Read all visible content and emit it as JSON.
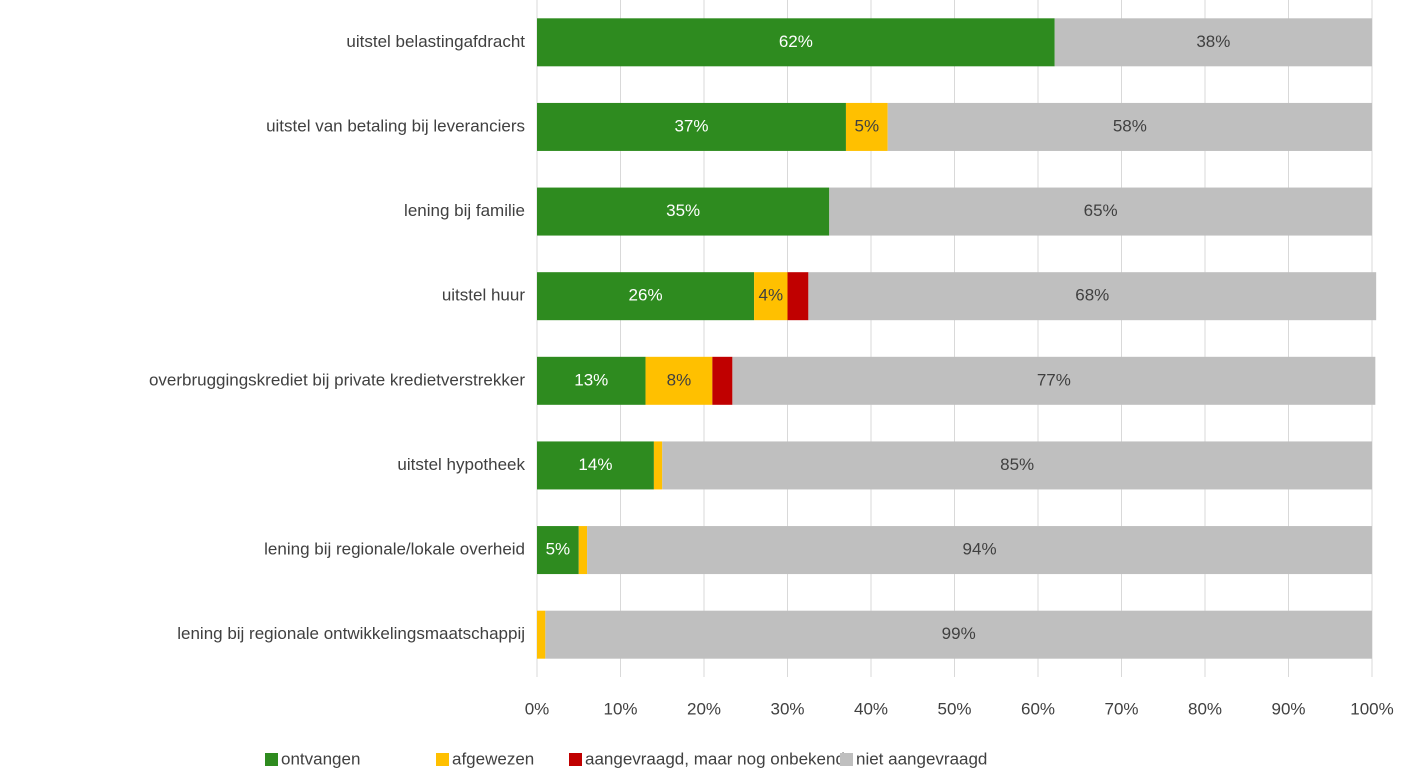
{
  "chart_data": {
    "type": "stacked_bar_horizontal",
    "categories": [
      "uitstel belastingafdracht",
      "uitstel van betaling bij leveranciers",
      "lening bij familie",
      "uitstel huur",
      "overbruggingskrediet bij private kredietverstrekker",
      "uitstel hypotheek",
      "lening bij regionale/lokale overheid",
      "lening bij regionale ontwikkelingsmaatschappij"
    ],
    "series": [
      {
        "name": "ontvangen",
        "color": "#2e8b1f",
        "values": [
          62,
          37,
          35,
          26,
          13,
          14,
          5,
          0
        ],
        "value_labels": [
          "62%",
          "37%",
          "35%",
          "26%",
          "13%",
          "14%",
          "5%",
          null
        ]
      },
      {
        "name": "afgewezen",
        "color": "#ffc000",
        "values": [
          0,
          5,
          0,
          4,
          8,
          1,
          1,
          1
        ],
        "value_labels": [
          null,
          "5%",
          null,
          "4%",
          "8%",
          null,
          null,
          null
        ]
      },
      {
        "name": "aangevraagd, maar nog onbekend",
        "color": "#c00000",
        "values": [
          0,
          0,
          0,
          2.5,
          2.4,
          0,
          0,
          0
        ]
      },
      {
        "name": "niet aangevraagd",
        "color": "#bfbfbf",
        "values": [
          38,
          58,
          65,
          68,
          77,
          85,
          94,
          99
        ],
        "value_labels": [
          "38%",
          "58%",
          "65%",
          "68%",
          "77%",
          "85%",
          "94%",
          "99%"
        ]
      }
    ],
    "xlim": [
      0,
      100
    ],
    "xticks": [
      {
        "value": 0,
        "label": "0%"
      },
      {
        "value": 10,
        "label": "10%"
      },
      {
        "value": 20,
        "label": "20%"
      },
      {
        "value": 30,
        "label": "30%"
      },
      {
        "value": 40,
        "label": "40%"
      },
      {
        "value": 50,
        "label": "50%"
      },
      {
        "value": 60,
        "label": "60%"
      },
      {
        "value": 70,
        "label": "70%"
      },
      {
        "value": 80,
        "label": "80%"
      },
      {
        "value": 90,
        "label": "90%"
      },
      {
        "value": 100,
        "label": "100%"
      }
    ],
    "grid": true,
    "legend": "bottom"
  }
}
